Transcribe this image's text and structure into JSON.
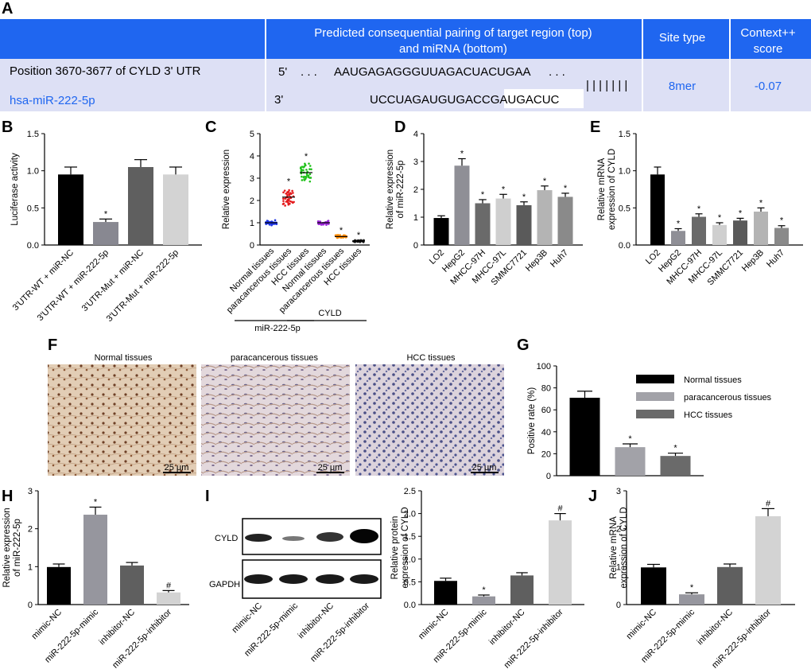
{
  "panel_letters": {
    "A": "A",
    "B": "B",
    "C": "C",
    "D": "D",
    "E": "E",
    "F": "F",
    "G": "G",
    "H": "H",
    "I": "I",
    "J": "J"
  },
  "panelA": {
    "header_pairing": [
      "Predicted consequential pairing of target region (top)",
      "and miRNA (bottom)"
    ],
    "header_site": "Site type",
    "header_score": [
      "Context++",
      "score"
    ],
    "position": "Position 3670-3677 of CYLD  3'  UTR",
    "mirna": "hsa-miR-222-5p",
    "five_prime": "5'",
    "three_prime": "3'",
    "target_dots_left": ". . .",
    "target_seq_plain": "AAUGAGAGGGUUAGA",
    "target_seq_seed": "CUACUGAA",
    "target_dots_right": ". . .",
    "bars": "| | | | | | |",
    "mirna_seq_plain": "UCCUAGAUGUGACC",
    "mirna_seq_seed": "GAUGACUC",
    "site_type": "8mer",
    "score": "-0.07",
    "colors": {
      "header": "#1f66f0",
      "row": "#dde0f5",
      "mirna_text": "#1f66f0"
    }
  },
  "panelF": {
    "labels": [
      "Normal tissues",
      "paracancerous tissues",
      "HCC tissues"
    ],
    "scalebar": "25 μm"
  },
  "panelI_blot": {
    "band_labels": [
      "CYLD",
      "GAPDH"
    ]
  },
  "chart_data": [
    {
      "id": "B",
      "type": "bar",
      "ylabel": "Luciferase activity",
      "ylim": [
        0,
        1.5
      ],
      "yticks": [
        "0.0",
        "0.5",
        "1.0",
        "1.5"
      ],
      "categories": [
        "3'UTR-WT + miR-NC",
        "3'UTR-WT + miR-222-5p",
        "3'UTR-Mut + miR-NC",
        "3'UTR-Mut + miR-222-5p"
      ],
      "values": [
        0.95,
        0.31,
        1.05,
        0.95
      ],
      "errors": [
        0.1,
        0.04,
        0.1,
        0.1
      ],
      "marks": [
        "",
        "*",
        "",
        ""
      ],
      "colors": [
        "#000000",
        "#888891",
        "#5f5f5f",
        "#d3d3d3"
      ]
    },
    {
      "id": "C",
      "type": "scatter",
      "ylabel": "Relative expression",
      "ylim": [
        0,
        5
      ],
      "yticks": [
        "0",
        "1",
        "2",
        "3",
        "4",
        "5"
      ],
      "categories": [
        "Normal tissues",
        "paracancerous tissues",
        "HCC tissues",
        "Normal tissues",
        "paracancerous tissues",
        "HCC tissues"
      ],
      "means": [
        1.0,
        2.15,
        3.25,
        1.0,
        0.38,
        0.18
      ],
      "spreads": [
        0.08,
        0.28,
        0.3,
        0.07,
        0.05,
        0.04
      ],
      "marks": [
        "",
        "*",
        "*",
        "",
        "*",
        "*"
      ],
      "colors": [
        "#1d34e6",
        "#e41a1c",
        "#22c21d",
        "#9c27d8",
        "#ff8c00",
        "#111111"
      ],
      "groups": [
        {
          "label": "miR-222-5p",
          "from": 0,
          "to": 2
        },
        {
          "label": "CYLD",
          "from": 3,
          "to": 5
        }
      ]
    },
    {
      "id": "D",
      "type": "bar",
      "ylabel": [
        "Relative expression",
        "of miR-222-5p"
      ],
      "ylim": [
        0,
        4
      ],
      "yticks": [
        "0",
        "1",
        "2",
        "3",
        "4"
      ],
      "categories": [
        "LO2",
        "HepG2",
        "MHCC-97H",
        "MHCC-97L",
        "SMMC7721",
        "Hep3B",
        "Huh7"
      ],
      "values": [
        0.97,
        2.85,
        1.5,
        1.67,
        1.43,
        1.97,
        1.73
      ],
      "errors": [
        0.08,
        0.25,
        0.13,
        0.15,
        0.12,
        0.15,
        0.13
      ],
      "marks": [
        "",
        "*",
        "*",
        "*",
        "*",
        "*",
        "*"
      ],
      "colors": [
        "#000000",
        "#8f8f96",
        "#6a6a6a",
        "#cfcfcf",
        "#5a5a5a",
        "#b4b4b4",
        "#8a8a8a"
      ]
    },
    {
      "id": "E",
      "type": "bar",
      "ylabel": [
        "Relative mRNA",
        "expression of CYLD"
      ],
      "ylim": [
        0,
        1.5
      ],
      "yticks": [
        "0.0",
        "0.5",
        "1.0",
        "1.5"
      ],
      "categories": [
        "LO2",
        "HepG2",
        "MHCC-97H",
        "MHCC-97L",
        "SMMC7721",
        "Hep3B",
        "Huh7"
      ],
      "values": [
        0.95,
        0.19,
        0.38,
        0.27,
        0.33,
        0.45,
        0.23
      ],
      "errors": [
        0.1,
        0.03,
        0.04,
        0.03,
        0.03,
        0.05,
        0.03
      ],
      "marks": [
        "",
        "*",
        "*",
        "*",
        "*",
        "*",
        "*"
      ],
      "colors": [
        "#000000",
        "#8f8f96",
        "#6a6a6a",
        "#cfcfcf",
        "#5a5a5a",
        "#b4b4b4",
        "#8a8a8a"
      ]
    },
    {
      "id": "G",
      "type": "bar",
      "ylabel": "Positive rate (%)",
      "ylim": [
        0,
        100
      ],
      "yticks": [
        "0",
        "20",
        "40",
        "60",
        "80",
        "100"
      ],
      "categories": [
        "Normal tissues",
        "paracancerous tissues",
        "HCC tissues"
      ],
      "values": [
        71,
        26,
        18
      ],
      "errors": [
        6,
        3,
        2.5
      ],
      "marks": [
        "",
        "*",
        "*"
      ],
      "colors": [
        "#000000",
        "#a2a2a8",
        "#6a6a6a"
      ],
      "legend": [
        "Normal tissues",
        "paracancerous tissues",
        "HCC tissues"
      ]
    },
    {
      "id": "H",
      "type": "bar",
      "ylabel": [
        "Relative expression",
        "of miR-222-5p"
      ],
      "ylim": [
        0,
        3
      ],
      "yticks": [
        "0",
        "1",
        "2",
        "3"
      ],
      "categories": [
        "mimic-NC",
        "miR-222-5p-mimic",
        "inhibitor-NC",
        "miR-222-5p-inhibitor"
      ],
      "values": [
        0.99,
        2.37,
        1.03,
        0.32
      ],
      "errors": [
        0.08,
        0.2,
        0.08,
        0.05
      ],
      "marks": [
        "",
        "*",
        "",
        "#"
      ],
      "colors": [
        "#000000",
        "#96969e",
        "#5f5f5f",
        "#d3d3d3"
      ]
    },
    {
      "id": "I",
      "type": "bar",
      "ylabel": [
        "Relative protein",
        "expression of CYLD"
      ],
      "ylim": [
        0,
        2.5
      ],
      "yticks": [
        "0.0",
        "0.5",
        "1.0",
        "1.5",
        "2.0",
        "2.5"
      ],
      "categories": [
        "mimic-NC",
        "miR-222-5p-mimic",
        "inhibitor-NC",
        "miR-222-5p-inhibitor"
      ],
      "values": [
        0.52,
        0.18,
        0.64,
        1.85
      ],
      "errors": [
        0.06,
        0.03,
        0.06,
        0.15
      ],
      "marks": [
        "",
        "*",
        "",
        "#"
      ],
      "colors": [
        "#000000",
        "#96969e",
        "#5f5f5f",
        "#d3d3d3"
      ]
    },
    {
      "id": "J",
      "type": "bar",
      "ylabel": [
        "Relative mRNA",
        "expression of CYLD"
      ],
      "ylim": [
        0,
        3
      ],
      "yticks": [
        "0",
        "1",
        "2",
        "3"
      ],
      "categories": [
        "mimic-NC",
        "miR-222-5p-mimic",
        "inhibitor-NC",
        "miR-222-5p-inhibitor"
      ],
      "values": [
        0.98,
        0.27,
        0.99,
        2.33
      ],
      "errors": [
        0.08,
        0.04,
        0.08,
        0.2
      ],
      "marks": [
        "",
        "*",
        "",
        "#"
      ],
      "colors": [
        "#000000",
        "#96969e",
        "#5f5f5f",
        "#d3d3d3"
      ]
    }
  ]
}
